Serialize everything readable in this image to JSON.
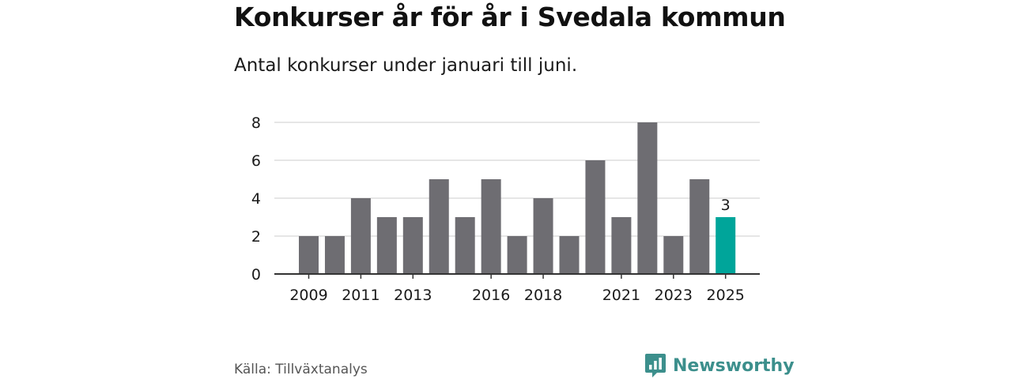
{
  "title": "Konkurser år för år i Svedala kommun",
  "subtitle": "Antal konkurser under januari till juni.",
  "source": "Källa: Tillväxtanalys",
  "brand": {
    "name": "Newsworthy",
    "icon": "newsworthy-logo-icon",
    "color": "#3c8f8c"
  },
  "colors": {
    "bar": "#6e6d72",
    "highlight": "#00a59a",
    "grid": "#d6d6d6",
    "axis": "#333333"
  },
  "chart_data": {
    "type": "bar",
    "categories": [
      "2009",
      "2010",
      "2011",
      "2012",
      "2013",
      "2014",
      "2015",
      "2016",
      "2017",
      "2018",
      "2019",
      "2020",
      "2021",
      "2022",
      "2023",
      "2024",
      "2025"
    ],
    "values": [
      2,
      2,
      4,
      3,
      3,
      5,
      3,
      5,
      2,
      4,
      2,
      6,
      3,
      8,
      2,
      5,
      3
    ],
    "x_tick_labels": [
      "2009",
      "2011",
      "2013",
      "2016",
      "2018",
      "2021",
      "2023",
      "2025"
    ],
    "y_ticks": [
      0,
      2,
      4,
      6,
      8
    ],
    "ylim": [
      0,
      8
    ],
    "highlight_category": "2025",
    "data_labels": [
      {
        "category": "2025",
        "text": "3"
      }
    ],
    "grid": true,
    "legend": "none"
  }
}
